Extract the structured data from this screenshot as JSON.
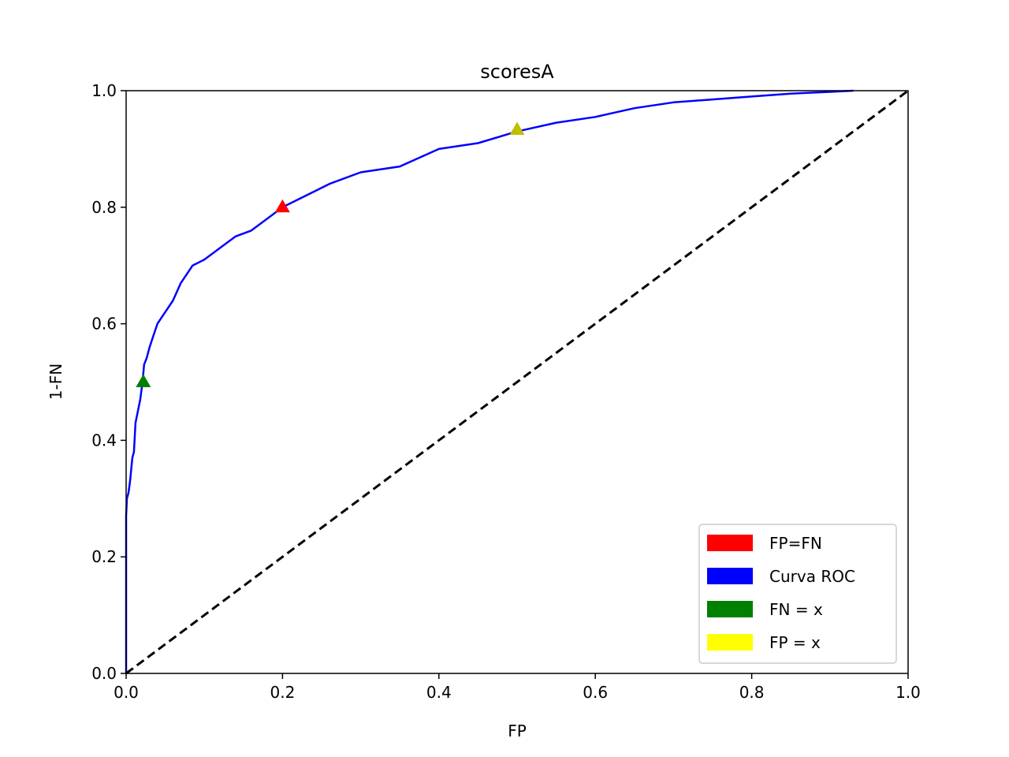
{
  "chart_data": {
    "type": "line",
    "title": "scoresA",
    "xlabel": "FP",
    "ylabel": "1-FN",
    "xlim": [
      0.0,
      1.0
    ],
    "ylim": [
      0.0,
      1.0
    ],
    "xticks": [
      "0.0",
      "0.2",
      "0.4",
      "0.6",
      "0.8",
      "1.0"
    ],
    "yticks": [
      "0.0",
      "0.2",
      "0.4",
      "0.6",
      "0.8",
      "1.0"
    ],
    "grid": false,
    "legend_position": "bottom-right",
    "series": [
      {
        "name": "Curva ROC",
        "color": "#0000ff",
        "style": "solid",
        "x": [
          0.0,
          0.0,
          0.001,
          0.003,
          0.005,
          0.008,
          0.01,
          0.012,
          0.015,
          0.018,
          0.021,
          0.023,
          0.026,
          0.03,
          0.035,
          0.04,
          0.045,
          0.05,
          0.06,
          0.07,
          0.08,
          0.085,
          0.1,
          0.12,
          0.14,
          0.16,
          0.18,
          0.2,
          0.23,
          0.26,
          0.3,
          0.35,
          0.4,
          0.45,
          0.5,
          0.55,
          0.6,
          0.65,
          0.7,
          0.75,
          0.8,
          0.85,
          0.9,
          0.93
        ],
        "y": [
          0.0,
          0.27,
          0.3,
          0.31,
          0.33,
          0.37,
          0.38,
          0.43,
          0.45,
          0.47,
          0.5,
          0.53,
          0.54,
          0.56,
          0.58,
          0.6,
          0.61,
          0.62,
          0.64,
          0.67,
          0.69,
          0.7,
          0.71,
          0.73,
          0.75,
          0.76,
          0.78,
          0.8,
          0.82,
          0.84,
          0.86,
          0.87,
          0.9,
          0.91,
          0.93,
          0.945,
          0.955,
          0.97,
          0.98,
          0.985,
          0.99,
          0.995,
          0.998,
          1.0
        ]
      },
      {
        "name": "",
        "color": "#000000",
        "style": "dashed",
        "x": [
          0.0,
          1.0
        ],
        "y": [
          0.0,
          1.0
        ]
      }
    ],
    "markers": [
      {
        "x": 0.2,
        "y": 0.8,
        "color": "#ff0000"
      },
      {
        "x": 0.022,
        "y": 0.5,
        "color": "#008000"
      },
      {
        "x": 0.5,
        "y": 0.933,
        "color": "#bfbf00"
      }
    ],
    "legend": [
      {
        "label": "FP=FN",
        "color": "#ff0000"
      },
      {
        "label": "Curva ROC",
        "color": "#0000ff"
      },
      {
        "label": "FN = x",
        "color": "#008000"
      },
      {
        "label": "FP = x",
        "color": "#ffff00"
      }
    ]
  }
}
